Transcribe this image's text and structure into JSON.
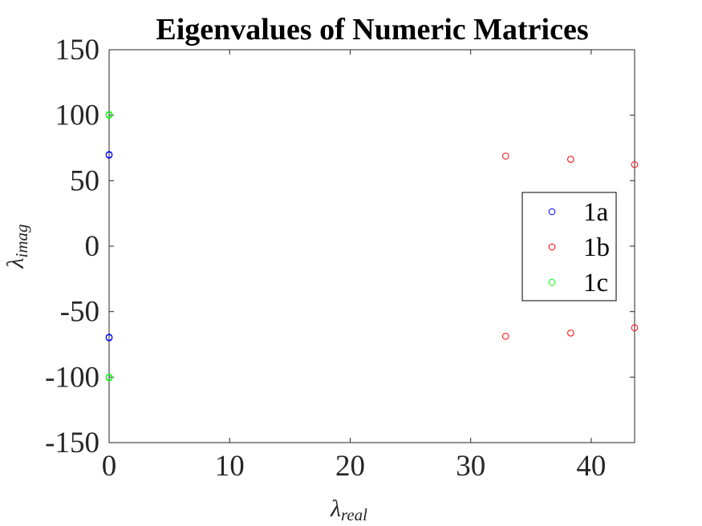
{
  "chart_data": {
    "type": "scatter",
    "title": "Eigenvalues of Numeric Matrices",
    "xlabel": {
      "main": "λ",
      "sub": "real"
    },
    "ylabel": {
      "main": "λ",
      "sub": "imag"
    },
    "xlim": [
      0,
      43.6
    ],
    "ylim": [
      -150,
      150
    ],
    "xticks": [
      0,
      10,
      20,
      30,
      40
    ],
    "yticks": [
      150,
      100,
      50,
      0,
      -50,
      -100,
      -150
    ],
    "xtick_labels": [
      "0",
      "10",
      "20",
      "30",
      "40"
    ],
    "ytick_labels": [
      "150",
      "100",
      "50",
      "0",
      "-50",
      "-100",
      "-150"
    ],
    "grid": false,
    "legend_position": "right",
    "series": [
      {
        "name": "1a",
        "color": "#0000ff",
        "points": [
          [
            0,
            69.5
          ],
          [
            0,
            70
          ],
          [
            0,
            -69.5
          ],
          [
            0,
            -70
          ]
        ]
      },
      {
        "name": "1b",
        "color": "#ff0000",
        "points": [
          [
            32.9,
            68.8
          ],
          [
            38.3,
            66.3
          ],
          [
            43.6,
            62.3
          ],
          [
            32.9,
            -68.8
          ],
          [
            38.3,
            -66.3
          ],
          [
            43.6,
            -62.3
          ]
        ]
      },
      {
        "name": "1c",
        "color": "#00ff00",
        "points": [
          [
            0,
            100
          ],
          [
            0,
            100.5
          ],
          [
            0,
            -100
          ],
          [
            0,
            -100.5
          ]
        ]
      }
    ]
  }
}
